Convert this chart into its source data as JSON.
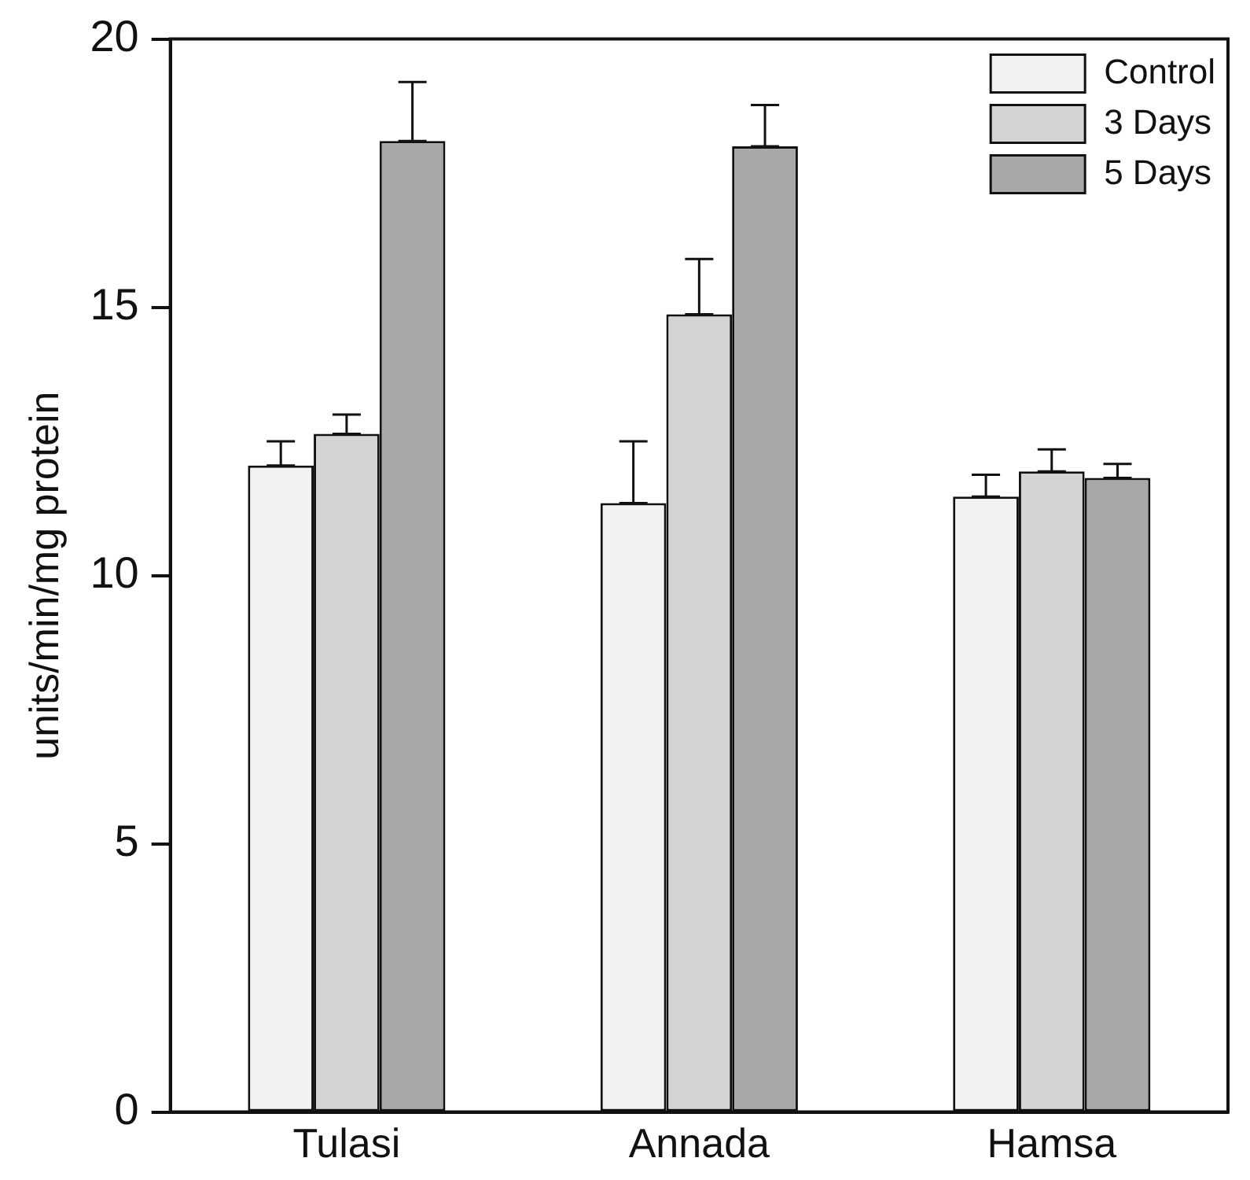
{
  "chart_data": {
    "type": "bar",
    "ylabel": "units/min/mg protein",
    "categories": [
      "Tulasi",
      "Annada",
      "Hamsa"
    ],
    "series": [
      {
        "name": "Control",
        "color": "#f2f2f2",
        "values": [
          12.05,
          11.35,
          11.47
        ],
        "errors": [
          [
            12.05,
            12.5
          ],
          [
            11.35,
            12.5
          ],
          [
            11.47,
            11.88
          ]
        ]
      },
      {
        "name": "3 Days",
        "color": "#d4d4d4",
        "values": [
          12.64,
          14.87,
          11.94
        ],
        "errors": [
          [
            12.64,
            13.0
          ],
          [
            14.87,
            15.9
          ],
          [
            11.94,
            12.35
          ]
        ]
      },
      {
        "name": "5 Days",
        "color": "#a8a8a8",
        "values": [
          18.1,
          18.0,
          11.82
        ],
        "errors": [
          [
            18.1,
            19.2
          ],
          [
            18.0,
            18.77
          ],
          [
            11.82,
            12.08
          ]
        ]
      }
    ],
    "ylim": [
      0,
      20
    ],
    "yticks": [
      0,
      5,
      10,
      15,
      20
    ],
    "grid": false,
    "legend": "top right"
  }
}
